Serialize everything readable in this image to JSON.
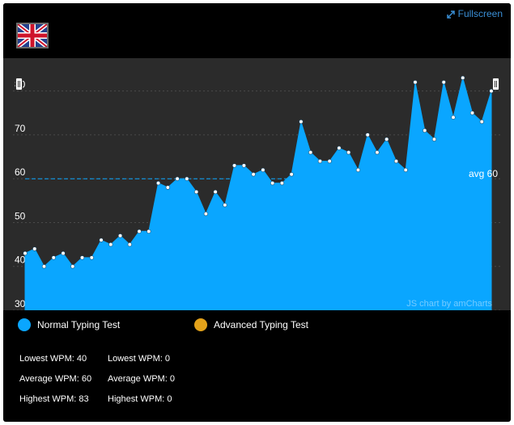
{
  "header": {
    "fullscreen_label": "Fullscreen",
    "flag_icon": "uk-flag-icon"
  },
  "colors": {
    "normal": "#0aa6ff",
    "advanced": "#e3a21a",
    "background": "#000000",
    "plot": "#2b2b2b"
  },
  "chart_data": {
    "type": "area",
    "y_ticks": [
      "30",
      "40",
      "50",
      "60",
      "70",
      "80"
    ],
    "ylim": [
      30,
      83
    ],
    "grid": true,
    "avg_line": {
      "value": 60,
      "label": "avg 60"
    },
    "watermark": "JS chart by amCharts",
    "series": [
      {
        "name": "Normal Typing Test",
        "values": [
          43,
          44,
          40,
          42,
          43,
          40,
          42,
          42,
          46,
          45,
          47,
          45,
          48,
          48,
          59,
          58,
          60,
          60,
          57,
          52,
          57,
          54,
          63,
          63,
          61,
          62,
          59,
          59,
          61,
          73,
          66,
          64,
          64,
          67,
          66,
          62,
          70,
          66,
          69,
          64,
          62,
          82,
          71,
          69,
          82,
          74,
          83,
          75,
          73,
          80
        ]
      },
      {
        "name": "Advanced Typing Test",
        "values": []
      }
    ]
  },
  "legend": {
    "normal_label": "Normal Typing Test",
    "advanced_label": "Advanced Typing Test"
  },
  "stats": {
    "normal": {
      "lowest": "Lowest WPM: 40",
      "average": "Average WPM: 60",
      "highest": "Highest WPM: 83"
    },
    "advanced": {
      "lowest": "Lowest WPM: 0",
      "average": "Average WPM: 0",
      "highest": "Highest WPM: 0"
    }
  }
}
